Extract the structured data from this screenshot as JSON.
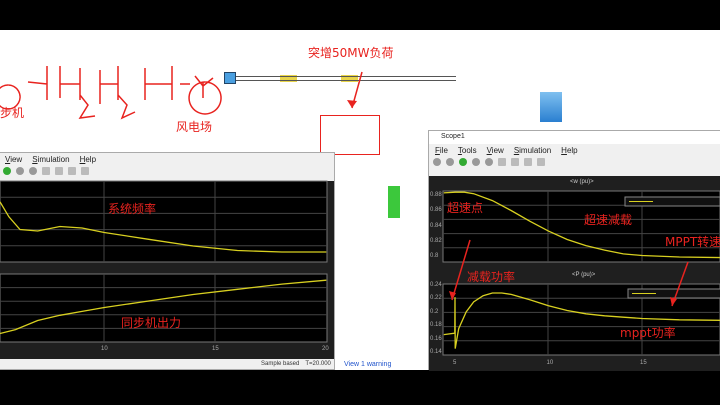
{
  "left_scope": {
    "menu": [
      "View",
      "Simulation",
      "Help"
    ],
    "x_ticks": [
      "10",
      "15",
      "20"
    ],
    "status": {
      "sample": "Sample based",
      "time": "T=20.000",
      "warning": "View 1 warning"
    }
  },
  "right_scope": {
    "title": "Scope1",
    "menu": [
      "File",
      "Tools",
      "View",
      "Simulation",
      "Help"
    ],
    "top_plot_title": "<w (pu)>",
    "bottom_plot_title": "<P (pu)>",
    "top_y_ticks": [
      "0.88",
      "0.86",
      "0.84",
      "0.82",
      "0.8"
    ],
    "bottom_y_ticks": [
      "0.24",
      "0.22",
      "0.2",
      "0.18",
      "0.16",
      "0.14"
    ],
    "x_ticks": [
      "5",
      "10",
      "15"
    ],
    "top_legend": "<w (pu)>",
    "bottom_legend": "<P (pu)>"
  },
  "annotations": {
    "load_step": "突增50MW负荷",
    "sync_gen": "步机",
    "wind_farm": "风电场",
    "system_freq": "系统频率",
    "sync_output": "同步机出力",
    "overspeed_point": "超速点",
    "overspeed_deload": "超速减载",
    "mppt_speed": "MPPT转速",
    "deload_power": "减载功率",
    "mppt_power": "mppt功率"
  },
  "colors": {
    "trace": "#d8d020",
    "annotation": "#e8231f",
    "plot_bg": "#000000",
    "simulink_block": "#4a9fe0",
    "green_block": "#3cc83c",
    "yellow_block": "#e8d44a"
  },
  "chart_data": [
    {
      "type": "line",
      "title": "<w (pu)>",
      "xlim": [
        4.4,
        20
      ],
      "ylim": [
        0.795,
        0.89
      ],
      "x": [
        4.4,
        5,
        5.5,
        6,
        7,
        8,
        9,
        10,
        11,
        12,
        13,
        14,
        15,
        17,
        20
      ],
      "y": [
        0.884,
        0.885,
        0.885,
        0.883,
        0.874,
        0.861,
        0.847,
        0.834,
        0.823,
        0.815,
        0.809,
        0.804,
        0.802,
        0.8,
        0.799
      ]
    },
    {
      "type": "line",
      "title": "<P (pu)>",
      "xlim": [
        4.4,
        20
      ],
      "ylim": [
        0.135,
        0.245
      ],
      "x": [
        4.4,
        4.99,
        5,
        5.01,
        5.2,
        5.6,
        6,
        6.5,
        7,
        7.5,
        8,
        9,
        10,
        11,
        12,
        13,
        14,
        15,
        17,
        20
      ],
      "y": [
        0.166,
        0.168,
        0.222,
        0.145,
        0.175,
        0.2,
        0.215,
        0.224,
        0.228,
        0.228,
        0.226,
        0.218,
        0.209,
        0.202,
        0.197,
        0.194,
        0.192,
        0.19,
        0.188,
        0.187
      ]
    },
    {
      "type": "line",
      "xlim": [
        5.3,
        20
      ],
      "x": [
        5.3,
        5.7,
        6.2,
        7,
        8,
        9,
        10,
        12,
        14,
        16,
        18,
        20
      ],
      "y": [
        0.75,
        0.55,
        0.38,
        0.36,
        0.42,
        0.4,
        0.34,
        0.25,
        0.16,
        0.1,
        0.08,
        0.08
      ]
    },
    {
      "type": "line",
      "xlim": [
        5.3,
        20
      ],
      "x": [
        5.3,
        6,
        7,
        8,
        9,
        10,
        12,
        14,
        16,
        18,
        20
      ],
      "y": [
        0.1,
        0.16,
        0.3,
        0.38,
        0.44,
        0.5,
        0.6,
        0.7,
        0.78,
        0.86,
        0.92
      ]
    }
  ]
}
